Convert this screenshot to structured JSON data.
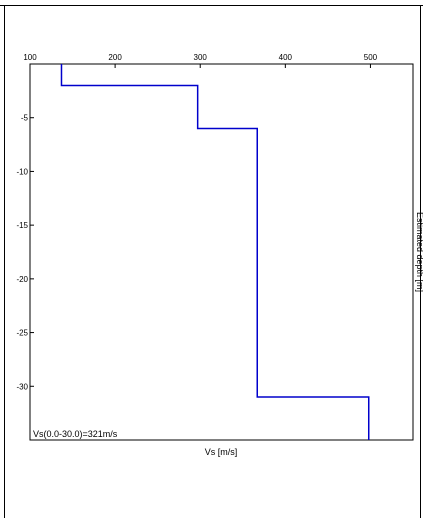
{
  "chart_data": {
    "type": "line",
    "title": "",
    "xlabel": "Vs [m/s]",
    "ylabel": "Estimated depth [m]",
    "xlim": [
      100,
      550
    ],
    "ylim": [
      0,
      -35
    ],
    "x_ticks": [
      100,
      200,
      300,
      400,
      500
    ],
    "y_ticks": [
      -5,
      -10,
      -15,
      -20,
      -25,
      -30
    ],
    "x_tick_labels": [
      "100",
      "200",
      "300",
      "400",
      "500"
    ],
    "y_tick_labels": [
      "-5",
      "-10",
      "-15",
      "-20",
      "-25",
      "-30"
    ],
    "grid": false,
    "line_color": "#0000cc",
    "series": [
      {
        "x": [
          137,
          137,
          297,
          297,
          367,
          367,
          498,
          498
        ],
        "y": [
          0,
          -2.0,
          -2.0,
          -6.0,
          -6.0,
          -31.0,
          -31.0,
          -35.0
        ]
      }
    ],
    "annotation": "Vs(0.0-30.0)=321m/s"
  }
}
